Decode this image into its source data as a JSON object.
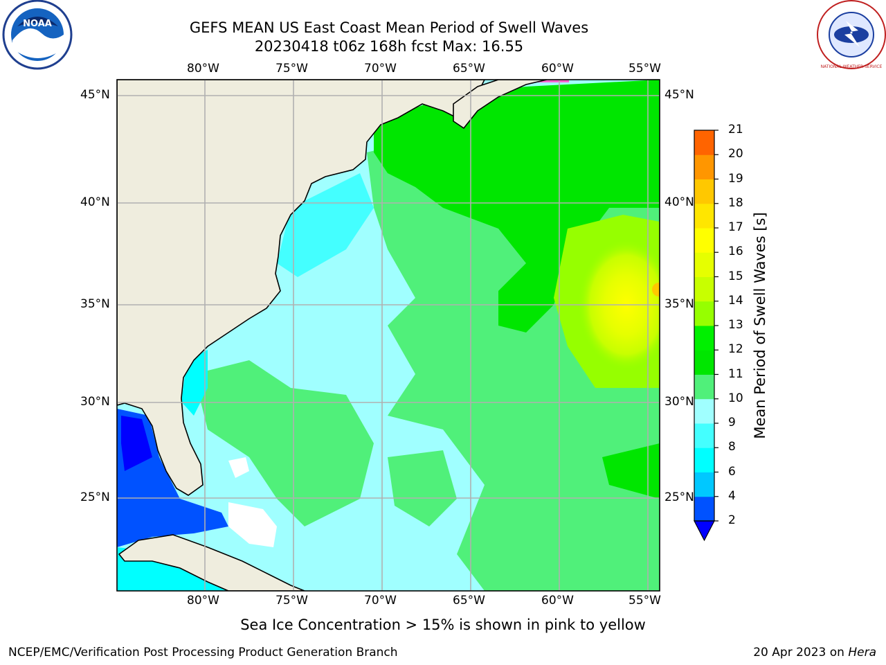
{
  "title": {
    "line1": "GEFS MEAN US East Coast Mean Period of Swell Waves",
    "line2": "20230418 t06z 168h fcst   Max: 16.55"
  },
  "logos": {
    "left": {
      "name": "noaa-logo",
      "text": "NOAA"
    },
    "right": {
      "name": "nws-logo",
      "text": "NATIONAL WEATHER SERVICE"
    }
  },
  "map": {
    "lon_labels": [
      "80°W",
      "75°W",
      "70°W",
      "65°W",
      "60°W",
      "55°W"
    ],
    "lat_labels": [
      "45°N",
      "40°N",
      "35°N",
      "30°N",
      "25°N"
    ],
    "land_color": "#efedde",
    "grid_color": "#b0b0b0"
  },
  "colorbar": {
    "title": "Mean Period of Swell Waves [s]",
    "ticks": [
      "21",
      "20",
      "19",
      "18",
      "17",
      "16",
      "15",
      "14",
      "13",
      "12",
      "11",
      "10",
      "9",
      "8",
      "6",
      "4",
      "2"
    ],
    "colors_low_to_high": [
      "#0052ff",
      "#00c8ff",
      "#00ffff",
      "#44ffff",
      "#a0ffff",
      "#50f07a",
      "#00e600",
      "#00f000",
      "#96ff00",
      "#c8ff00",
      "#e6ff00",
      "#ffff00",
      "#ffe600",
      "#ffc800",
      "#ff9600",
      "#ff6400",
      "#ff3200",
      "#ff0000"
    ],
    "under_color": "#0000ff"
  },
  "footer": {
    "ice_note": "Sea Ice Concentration > 15% is shown in pink to yellow",
    "credit": "NCEP/EMC/Verification Post Processing Product Generation Branch",
    "date": "20 Apr 2023 on",
    "host": "Hera"
  }
}
